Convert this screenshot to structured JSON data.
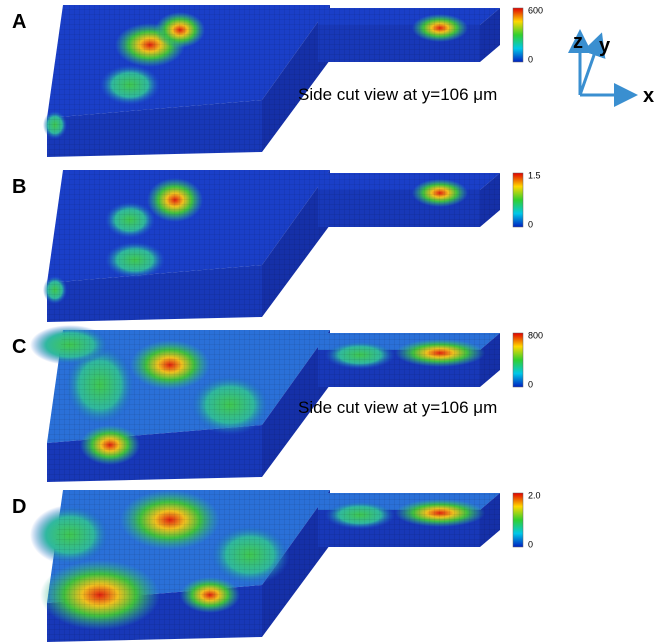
{
  "panels": [
    {
      "label": "A",
      "colorbar": {
        "max": "600",
        "min": "0"
      },
      "caption": "Side cut view at y=106 μm"
    },
    {
      "label": "B",
      "colorbar": {
        "max": "1.5",
        "min": "0"
      }
    },
    {
      "label": "C",
      "colorbar": {
        "max": "800",
        "min": "0"
      },
      "caption": "Side cut view at y=106 μm"
    },
    {
      "label": "D",
      "colorbar": {
        "max": "2.0",
        "min": "0"
      }
    }
  ],
  "axes": {
    "z": "z",
    "y": "y",
    "x": "x"
  }
}
